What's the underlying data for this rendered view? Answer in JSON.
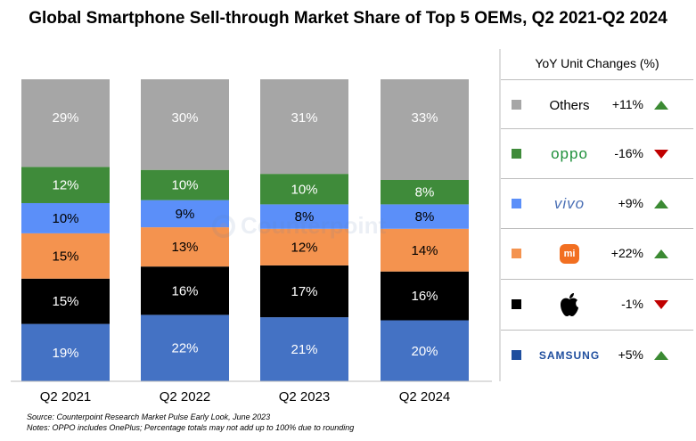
{
  "chart_data": {
    "type": "bar",
    "stacked": true,
    "title": "Global Smartphone Sell-through Market Share of Top 5 OEMs, Q2 2021-Q2 2024",
    "categories": [
      "Q2 2021",
      "Q2 2022",
      "Q2 2023",
      "Q2 2024"
    ],
    "ylim": [
      0,
      100
    ],
    "grid": false,
    "legend_position": "right",
    "series": [
      {
        "name": "SAMSUNG",
        "color": "#4472c4",
        "values": [
          19,
          22,
          21,
          20
        ],
        "labels": [
          "19%",
          "22%",
          "21%",
          "20%"
        ],
        "label_color": "#ffffff"
      },
      {
        "name": "Apple",
        "color": "#000000",
        "values": [
          15,
          16,
          17,
          16
        ],
        "labels": [
          "15%",
          "16%",
          "17%",
          "16%"
        ],
        "label_color": "#ffffff"
      },
      {
        "name": "Xiaomi",
        "color": "#f4934f",
        "values": [
          15,
          13,
          12,
          14
        ],
        "labels": [
          "15%",
          "13%",
          "12%",
          "14%"
        ],
        "label_color": "#000000"
      },
      {
        "name": "vivo",
        "color": "#5b8ff9",
        "values": [
          10,
          9,
          8,
          8
        ],
        "labels": [
          "10%",
          "9%",
          "8%",
          "8%"
        ],
        "label_color": "#000000"
      },
      {
        "name": "oppo",
        "color": "#3f8b3a",
        "values": [
          12,
          10,
          10,
          8
        ],
        "labels": [
          "12%",
          "10%",
          "10%",
          "8%"
        ],
        "label_color": "#ffffff"
      },
      {
        "name": "Others",
        "color": "#a6a6a6",
        "values": [
          29,
          30,
          31,
          33
        ],
        "labels": [
          "29%",
          "30%",
          "31%",
          "33%"
        ],
        "label_color": "#ffffff"
      }
    ]
  },
  "legend": {
    "title": "YoY Unit Changes (%)",
    "items": [
      {
        "brand": "Others",
        "brand_icon": "text",
        "color": "#a6a6a6",
        "change": "+11%",
        "direction": "up"
      },
      {
        "brand": "oppo",
        "brand_icon": "oppo-logo",
        "color": "#3f8b3a",
        "change": "-16%",
        "direction": "down"
      },
      {
        "brand": "vivo",
        "brand_icon": "vivo-logo",
        "color": "#5b8ff9",
        "change": "+9%",
        "direction": "up"
      },
      {
        "brand": "mi",
        "brand_icon": "xiaomi-logo",
        "color": "#f4934f",
        "change": "+22%",
        "direction": "up"
      },
      {
        "brand": "",
        "brand_icon": "apple-logo",
        "color": "#000000",
        "change": "-1%",
        "direction": "down"
      },
      {
        "brand": "SAMSUNG",
        "brand_icon": "samsung-logo",
        "color": "#1f4e9e",
        "change": "+5%",
        "direction": "up"
      }
    ]
  },
  "footnotes": {
    "source": "Source: Counterpoint Research Market Pulse Early Look, June 2023",
    "notes": "Notes: OPPO includes OnePlus; Percentage totals may not add up to 100% due to rounding"
  },
  "watermark": {
    "text": "Counterpoint",
    "icon": "counterpoint-logo"
  },
  "colors": {
    "arrow_up": "#3b8a33",
    "arrow_down": "#c00000",
    "vivo_brand": "#4a6fb5",
    "oppo_brand": "#1e8f3a",
    "samsung_brand": "#1f4e9e",
    "xiaomi_brand": "#f26f21"
  }
}
